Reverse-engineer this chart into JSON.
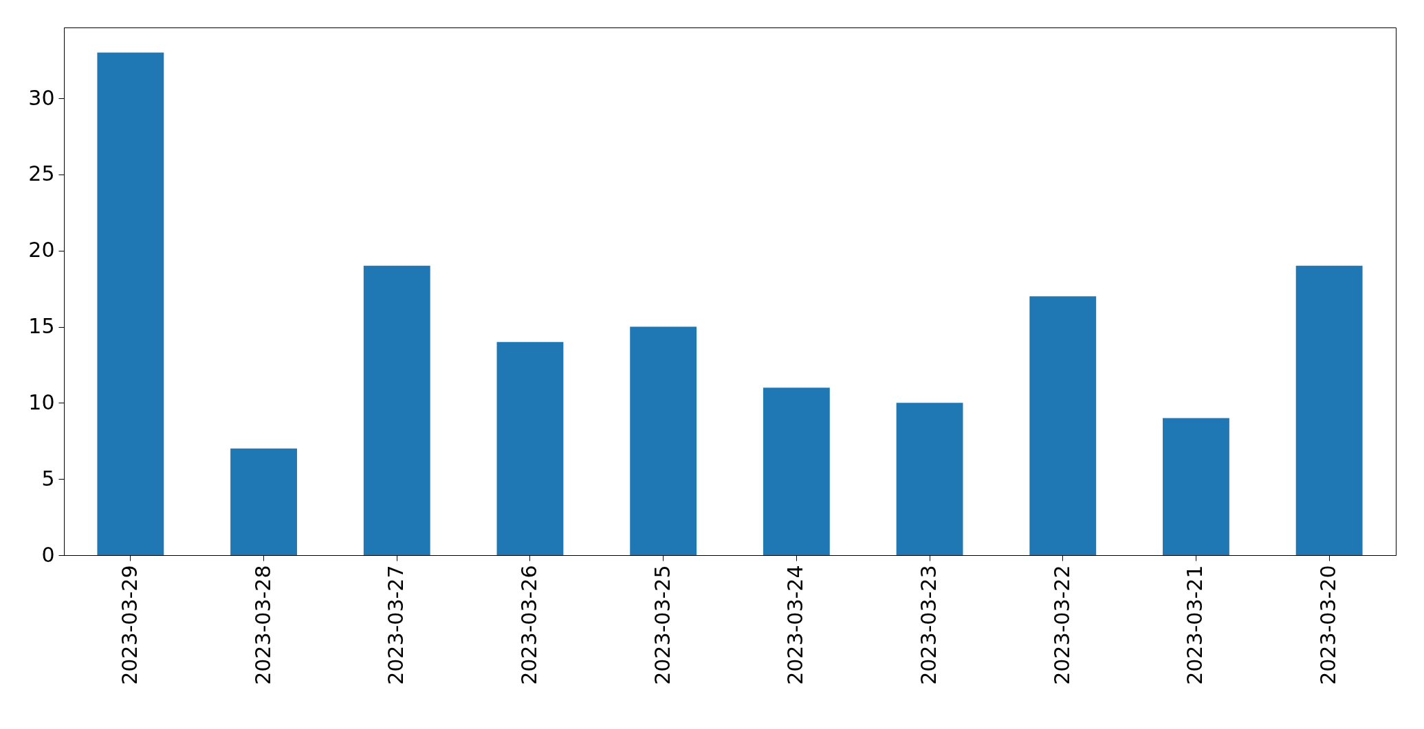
{
  "chart_data": {
    "type": "bar",
    "categories": [
      "2023-03-29",
      "2023-03-28",
      "2023-03-27",
      "2023-03-26",
      "2023-03-25",
      "2023-03-24",
      "2023-03-23",
      "2023-03-22",
      "2023-03-21",
      "2023-03-20"
    ],
    "values": [
      33,
      7,
      19,
      14,
      15,
      11,
      10,
      17,
      9,
      19
    ],
    "color": "#1f77b4",
    "ylim": [
      0,
      34.65
    ],
    "yticks": [
      0,
      5,
      10,
      15,
      20,
      25,
      30
    ],
    "grid": false
  }
}
